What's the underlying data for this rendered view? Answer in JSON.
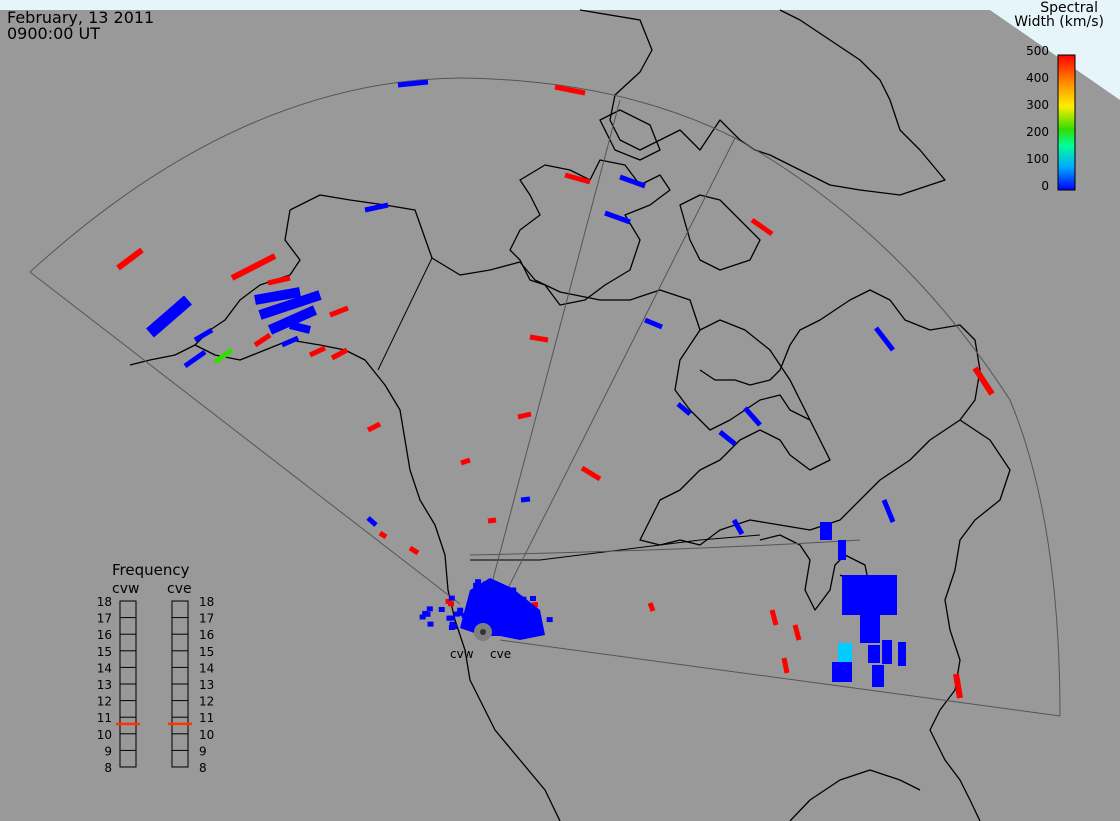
{
  "header": {
    "date": "February, 13 2011",
    "time": "0900:00 UT"
  },
  "colorbar": {
    "title_line1": "Spectral",
    "title_line2": "Width (km/s)",
    "ticks": [
      "500",
      "400",
      "300",
      "200",
      "100",
      "0"
    ],
    "range": [
      0,
      500
    ],
    "colors": [
      "#0000ff",
      "#00aaff",
      "#00ff99",
      "#33dd00",
      "#ffee00",
      "#ff8800",
      "#ff0000"
    ]
  },
  "frequency_panel": {
    "title": "Frequency",
    "radars": [
      {
        "name": "cvw",
        "frequency_mhz": 10.6
      },
      {
        "name": "cve",
        "frequency_mhz": 10.6
      }
    ],
    "scale_labels": [
      "18",
      "17",
      "16",
      "15",
      "14",
      "13",
      "12",
      "11",
      "10",
      "9",
      "8"
    ],
    "scale_range": [
      8,
      18
    ],
    "marker_color": "#ff3300"
  },
  "radar_labels": [
    "cvw",
    "cve"
  ],
  "colors": {
    "background": "#999999",
    "land_outline": "#000000",
    "fov_outline": "#555555",
    "sky": "#e6f5fa",
    "scatter_low": "#0000ff",
    "scatter_high": "#ff0000"
  }
}
